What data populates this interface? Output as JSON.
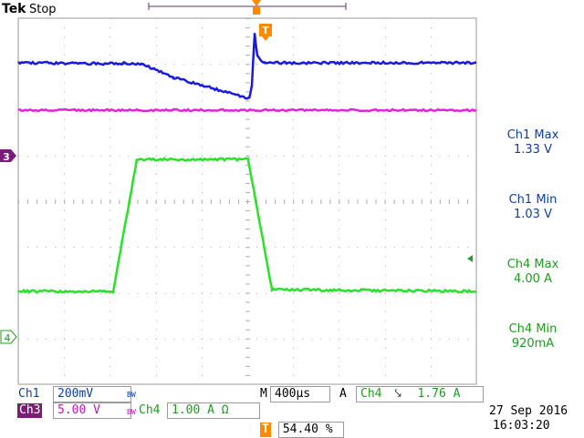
{
  "header": {
    "brand": "Tek",
    "state": "Stop"
  },
  "markers": {
    "trigger_top": "T",
    "ch3_marker": "3",
    "ch4_marker": "4"
  },
  "measurements": [
    {
      "label": "Ch1 Max",
      "value": "1.33 V"
    },
    {
      "label": "Ch1 Min",
      "value": "1.03 V"
    },
    {
      "label": "Ch4 Max",
      "value": "4.00 A"
    },
    {
      "label": "Ch4 Min",
      "value": "920mA"
    }
  ],
  "status": {
    "ch1_name": "Ch1",
    "ch1_scale": "200mV",
    "bw1": "BW",
    "ch3_name": "Ch3",
    "ch3_scale": "5.00 V",
    "bw3": "BW",
    "ch4_name": "Ch4",
    "ch4_scale": "1.00 A Ω",
    "time_prefix": "M",
    "time_scale": "400µs",
    "trig_mode": "A",
    "trig_source": "Ch4",
    "trig_slope": "⤥",
    "trig_level": "1.76 A",
    "trig_pos_icon": "T",
    "trig_pos": "54.40 %"
  },
  "datetime": {
    "date": "27 Sep  2016",
    "time": "16:03:20"
  },
  "colors": {
    "ch1": "#1a1adf",
    "ch3": "#e024d8",
    "ch4": "#27e227",
    "trigger": "#ff8a00",
    "grid": "#bdbdbd",
    "text_blue": "#0b3fa6",
    "ch3_label_bg": "#7d1a7a"
  }
}
